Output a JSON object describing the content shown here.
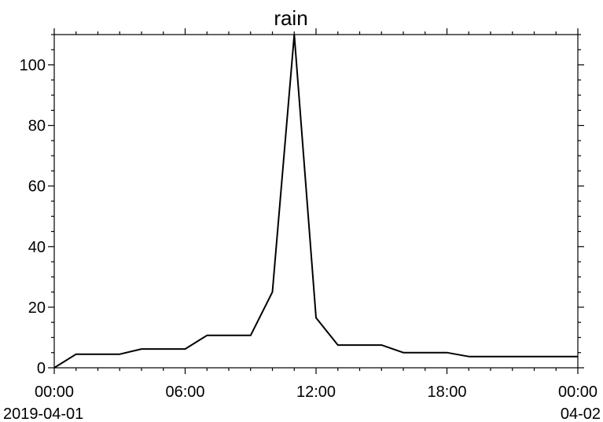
{
  "chart_data": {
    "type": "line",
    "title": "rain",
    "xlabel": "",
    "ylabel": "",
    "x_range": [
      "2019-04-01 00:00",
      "2019-04-02 00:00"
    ],
    "ylim": [
      0,
      110
    ],
    "grid": false,
    "x_ticks": [
      {
        "hour": 0,
        "label": "00:00",
        "sublabel": "2019-04-01"
      },
      {
        "hour": 6,
        "label": "06:00",
        "sublabel": ""
      },
      {
        "hour": 12,
        "label": "12:00",
        "sublabel": ""
      },
      {
        "hour": 18,
        "label": "18:00",
        "sublabel": ""
      },
      {
        "hour": 24,
        "label": "00:00",
        "sublabel": "04-02"
      }
    ],
    "y_ticks": [
      0,
      20,
      40,
      60,
      80,
      100
    ],
    "series": [
      {
        "x": [
          "2019-04-01 00:00",
          "2019-04-01 01:00",
          "2019-04-01 02:00",
          "2019-04-01 03:00",
          "2019-04-01 04:00",
          "2019-04-01 05:00",
          "2019-04-01 06:00",
          "2019-04-01 07:00",
          "2019-04-01 08:00",
          "2019-04-01 09:00",
          "2019-04-01 10:00",
          "2019-04-01 11:00",
          "2019-04-01 12:00",
          "2019-04-01 13:00",
          "2019-04-01 14:00",
          "2019-04-01 15:00",
          "2019-04-01 16:00",
          "2019-04-01 17:00",
          "2019-04-01 18:00",
          "2019-04-01 19:00",
          "2019-04-01 20:00",
          "2019-04-01 21:00",
          "2019-04-01 22:00",
          "2019-04-01 23:00",
          "2019-04-02 00:00"
        ],
        "y": [
          0,
          4.5,
          4.5,
          4.5,
          6.2,
          6.2,
          6.2,
          10.7,
          10.7,
          10.7,
          25,
          110,
          16.5,
          7.5,
          7.5,
          7.5,
          5,
          5,
          5,
          3.7,
          3.7,
          3.7,
          3.7,
          3.7,
          3.7
        ]
      }
    ]
  }
}
